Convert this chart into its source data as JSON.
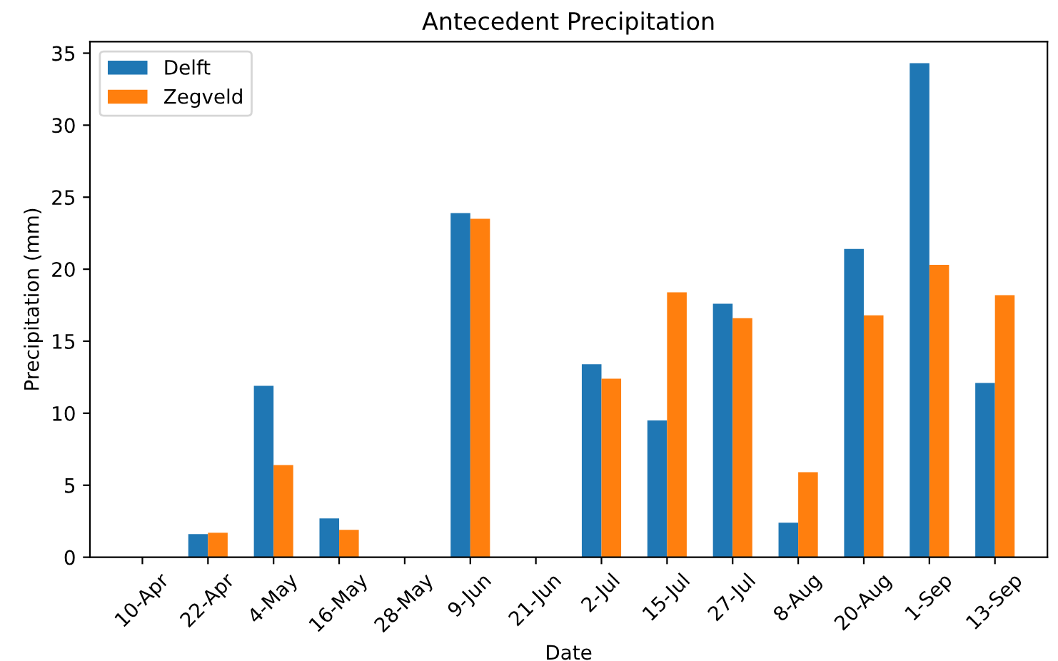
{
  "chart_data": {
    "type": "bar",
    "title": "Antecedent Precipitation",
    "xlabel": "Date",
    "ylabel": "Precipitation (mm)",
    "categories": [
      "10-Apr",
      "22-Apr",
      "4-May",
      "16-May",
      "28-May",
      "9-Jun",
      "21-Jun",
      "2-Jul",
      "15-Jul",
      "27-Jul",
      "8-Aug",
      "20-Aug",
      "1-Sep",
      "13-Sep"
    ],
    "series": [
      {
        "name": "Delft",
        "color": "#1f77b4",
        "values": [
          0,
          1.6,
          11.9,
          2.7,
          0,
          23.9,
          0,
          13.4,
          9.5,
          17.6,
          2.4,
          21.4,
          34.3,
          12.1
        ]
      },
      {
        "name": "Zegveld",
        "color": "#ff7f0e",
        "values": [
          0,
          1.7,
          6.4,
          1.9,
          0,
          23.5,
          0,
          12.4,
          18.4,
          16.6,
          5.9,
          16.8,
          20.3,
          18.2
        ]
      }
    ],
    "ylim": [
      0,
      35.8
    ],
    "yticks": [
      0,
      5,
      10,
      15,
      20,
      25,
      30,
      35
    ],
    "grid": false,
    "legend": "top left"
  }
}
